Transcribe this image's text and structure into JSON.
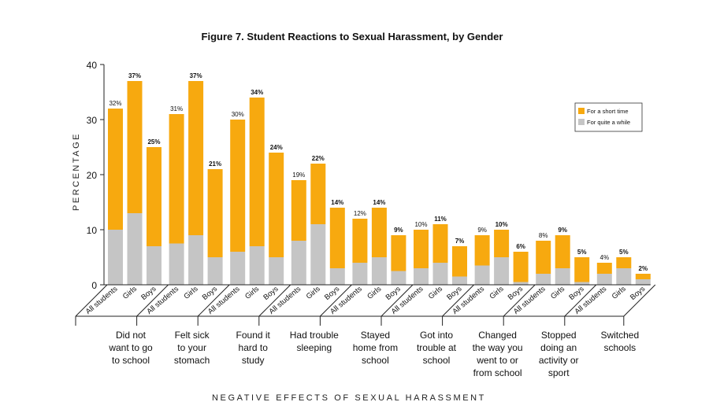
{
  "chart_data": {
    "type": "bar",
    "title": "Figure 7. Student Reactions to Sexual Harassment, by Gender",
    "xlabel": "NEGATIVE EFFECTS OF SEXUAL HARASSMENT",
    "ylabel": "PERCENTAGE",
    "ylim": [
      0,
      40
    ],
    "yticks": [
      "0",
      "10",
      "20",
      "30",
      "40"
    ],
    "stacked": true,
    "grid": false,
    "legend_position": "top-right",
    "legend": [
      "For a short time",
      "For quite a while"
    ],
    "colors": {
      "short_time": "#f7a90f",
      "quite_while": "#c5c5c5"
    },
    "subgroups": [
      "All students",
      "Girls",
      "Boys"
    ],
    "groups": [
      {
        "label": "Did not want to go to school",
        "label_lines": [
          "Did not",
          "want to go",
          "to school"
        ],
        "bars": [
          {
            "sub": "All students",
            "total": 32,
            "label": "32%",
            "quite_while": 10
          },
          {
            "sub": "Girls",
            "total": 37,
            "label": "37%",
            "quite_while": 13
          },
          {
            "sub": "Boys",
            "total": 25,
            "label": "25%",
            "quite_while": 7
          }
        ]
      },
      {
        "label": "Felt sick to your stomach",
        "label_lines": [
          "Felt sick",
          "to your",
          "stomach"
        ],
        "bars": [
          {
            "sub": "All students",
            "total": 31,
            "label": "31%",
            "quite_while": 7.5
          },
          {
            "sub": "Girls",
            "total": 37,
            "label": "37%",
            "quite_while": 9
          },
          {
            "sub": "Boys",
            "total": 21,
            "label": "21%",
            "quite_while": 5
          }
        ]
      },
      {
        "label": "Found it hard to study",
        "label_lines": [
          "Found it",
          "hard to",
          "study"
        ],
        "bars": [
          {
            "sub": "All students",
            "total": 30,
            "label": "30%",
            "quite_while": 6
          },
          {
            "sub": "Girls",
            "total": 34,
            "label": "34%",
            "quite_while": 7
          },
          {
            "sub": "Boys",
            "total": 24,
            "label": "24%",
            "quite_while": 5
          }
        ]
      },
      {
        "label": "Had trouble sleeping",
        "label_lines": [
          "Had trouble",
          "sleeping"
        ],
        "bars": [
          {
            "sub": "All students",
            "total": 19,
            "label": "19%",
            "quite_while": 8
          },
          {
            "sub": "Girls",
            "total": 22,
            "label": "22%",
            "quite_while": 11
          },
          {
            "sub": "Boys",
            "total": 14,
            "label": "14%",
            "quite_while": 3
          }
        ]
      },
      {
        "label": "Stayed home from school",
        "label_lines": [
          "Stayed",
          "home from",
          "school"
        ],
        "bars": [
          {
            "sub": "All students",
            "total": 12,
            "label": "12%",
            "quite_while": 4
          },
          {
            "sub": "Girls",
            "total": 14,
            "label": "14%",
            "quite_while": 5
          },
          {
            "sub": "Boys",
            "total": 9,
            "label": "9%",
            "quite_while": 2.5
          }
        ]
      },
      {
        "label": "Got into trouble at school",
        "label_lines": [
          "Got into",
          "trouble at",
          "school"
        ],
        "bars": [
          {
            "sub": "All students",
            "total": 10,
            "label": "10%",
            "quite_while": 3
          },
          {
            "sub": "Girls",
            "total": 11,
            "label": "11%",
            "quite_while": 4
          },
          {
            "sub": "Boys",
            "total": 7,
            "label": "7%",
            "quite_while": 1.5
          }
        ]
      },
      {
        "label": "Changed the way you went to or from school",
        "label_lines": [
          "Changed",
          "the way you",
          "went to or",
          "from school"
        ],
        "bars": [
          {
            "sub": "All students",
            "total": 9,
            "label": "9%",
            "quite_while": 3.5
          },
          {
            "sub": "Girls",
            "total": 10,
            "label": "10%",
            "quite_while": 5
          },
          {
            "sub": "Boys",
            "total": 6,
            "label": "6%",
            "quite_while": 0.5
          }
        ]
      },
      {
        "label": "Stopped doing an activity or sport",
        "label_lines": [
          "Stopped",
          "doing an",
          "activity or",
          "sport"
        ],
        "bars": [
          {
            "sub": "All students",
            "total": 8,
            "label": "8%",
            "quite_while": 2
          },
          {
            "sub": "Girls",
            "total": 9,
            "label": "9%",
            "quite_while": 3
          },
          {
            "sub": "Boys",
            "total": 5,
            "label": "5%",
            "quite_while": 0.5
          }
        ]
      },
      {
        "label": "Switched schools",
        "label_lines": [
          "Switched",
          "schools"
        ],
        "bars": [
          {
            "sub": "All students",
            "total": 4,
            "label": "4%",
            "quite_while": 2
          },
          {
            "sub": "Girls",
            "total": 5,
            "label": "5%",
            "quite_while": 3
          },
          {
            "sub": "Boys",
            "total": 2,
            "label": "2%",
            "quite_while": 1
          }
        ]
      }
    ]
  }
}
